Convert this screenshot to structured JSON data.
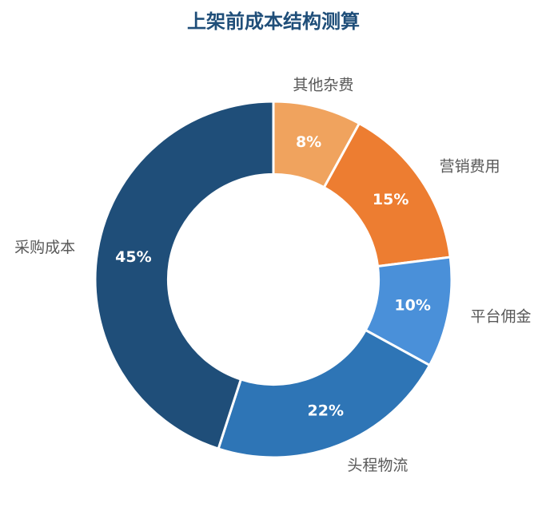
{
  "chart_data": {
    "type": "pie",
    "title": "上架前成本结构测算",
    "categories": [
      "其他杂费",
      "营销费用",
      "平台佣金",
      "头程物流",
      "采购成本"
    ],
    "values": [
      8,
      15,
      10,
      22,
      45
    ],
    "value_labels": [
      "8%",
      "15%",
      "10%",
      "22%",
      "45%"
    ],
    "colors": [
      "#f0a35e",
      "#ed7d31",
      "#4a90d9",
      "#2e75b6",
      "#1f4e79"
    ],
    "hole": 0.59
  }
}
